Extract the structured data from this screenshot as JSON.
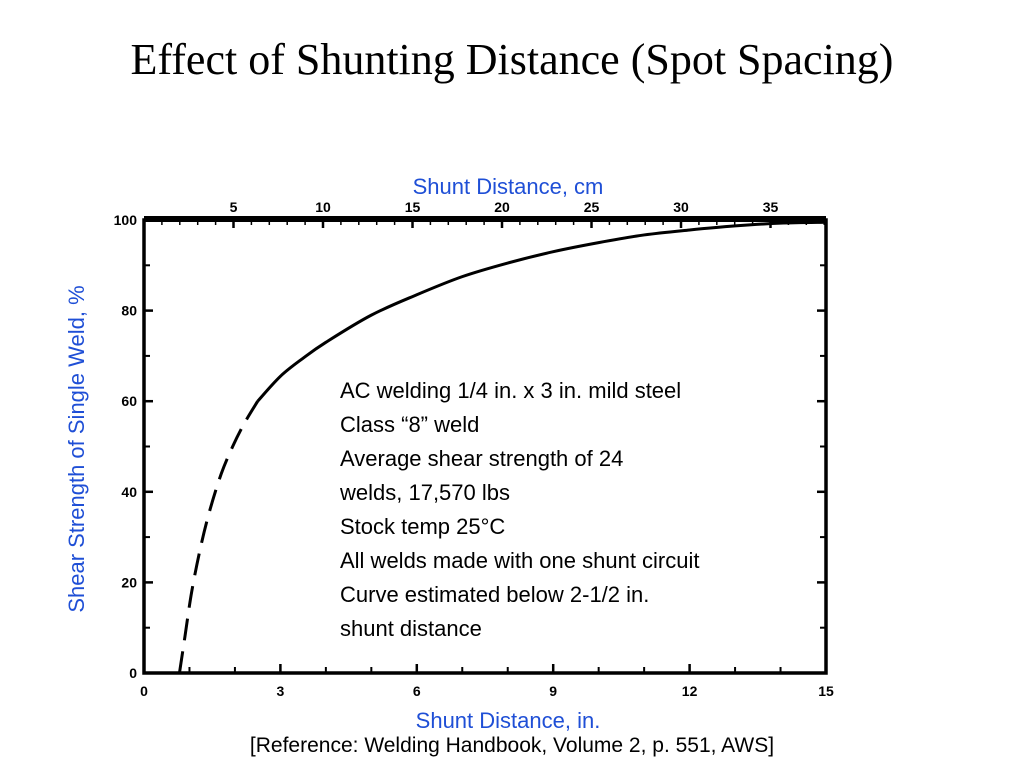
{
  "title": "Effect of Shunting Distance (Spot Spacing)",
  "reference": "[Reference: Welding Handbook, Volume 2, p. 551, AWS]",
  "colors": {
    "axis_label": "#1f4fd6",
    "ink": "#000000"
  },
  "chart_data": {
    "type": "line",
    "xlabel": "Shunt Distance, in.",
    "x2label": "Shunt Distance, cm",
    "ylabel": "Shear Strength of Single Weld, %",
    "xlim": [
      0,
      15
    ],
    "ylim": [
      0,
      100
    ],
    "x_ticks": [
      "0",
      "3",
      "6",
      "9",
      "12",
      "15"
    ],
    "y_ticks": [
      "0",
      "20",
      "40",
      "60",
      "80",
      "100"
    ],
    "x2_ticks": [
      "5",
      "10",
      "15",
      "20",
      "25",
      "30",
      "35"
    ],
    "grid": false,
    "series": [
      {
        "style": "dashed",
        "x": [
          0.78,
          0.9,
          1.05,
          1.25,
          1.45,
          1.7,
          1.95,
          2.2,
          2.5
        ],
        "y": [
          0,
          8,
          18,
          28,
          36,
          44,
          50,
          55,
          60
        ]
      },
      {
        "style": "solid",
        "x": [
          2.5,
          3,
          3.5,
          4,
          5,
          6,
          7,
          8,
          9,
          10,
          11,
          12,
          13,
          14,
          15
        ],
        "y": [
          60,
          65.5,
          69.5,
          73,
          79,
          83.5,
          87.5,
          90.5,
          93,
          95,
          96.7,
          97.8,
          98.7,
          99.3,
          99.5
        ]
      }
    ],
    "annotation": [
      "AC welding 1/4 in. x 3 in. mild steel",
      "Class “8” weld",
      "Average shear strength of 24",
      "welds, 17,570 lbs",
      "Stock temp 25°C",
      "All welds made with one shunt circuit",
      "Curve estimated below 2-1/2 in.",
      "shunt distance"
    ]
  }
}
